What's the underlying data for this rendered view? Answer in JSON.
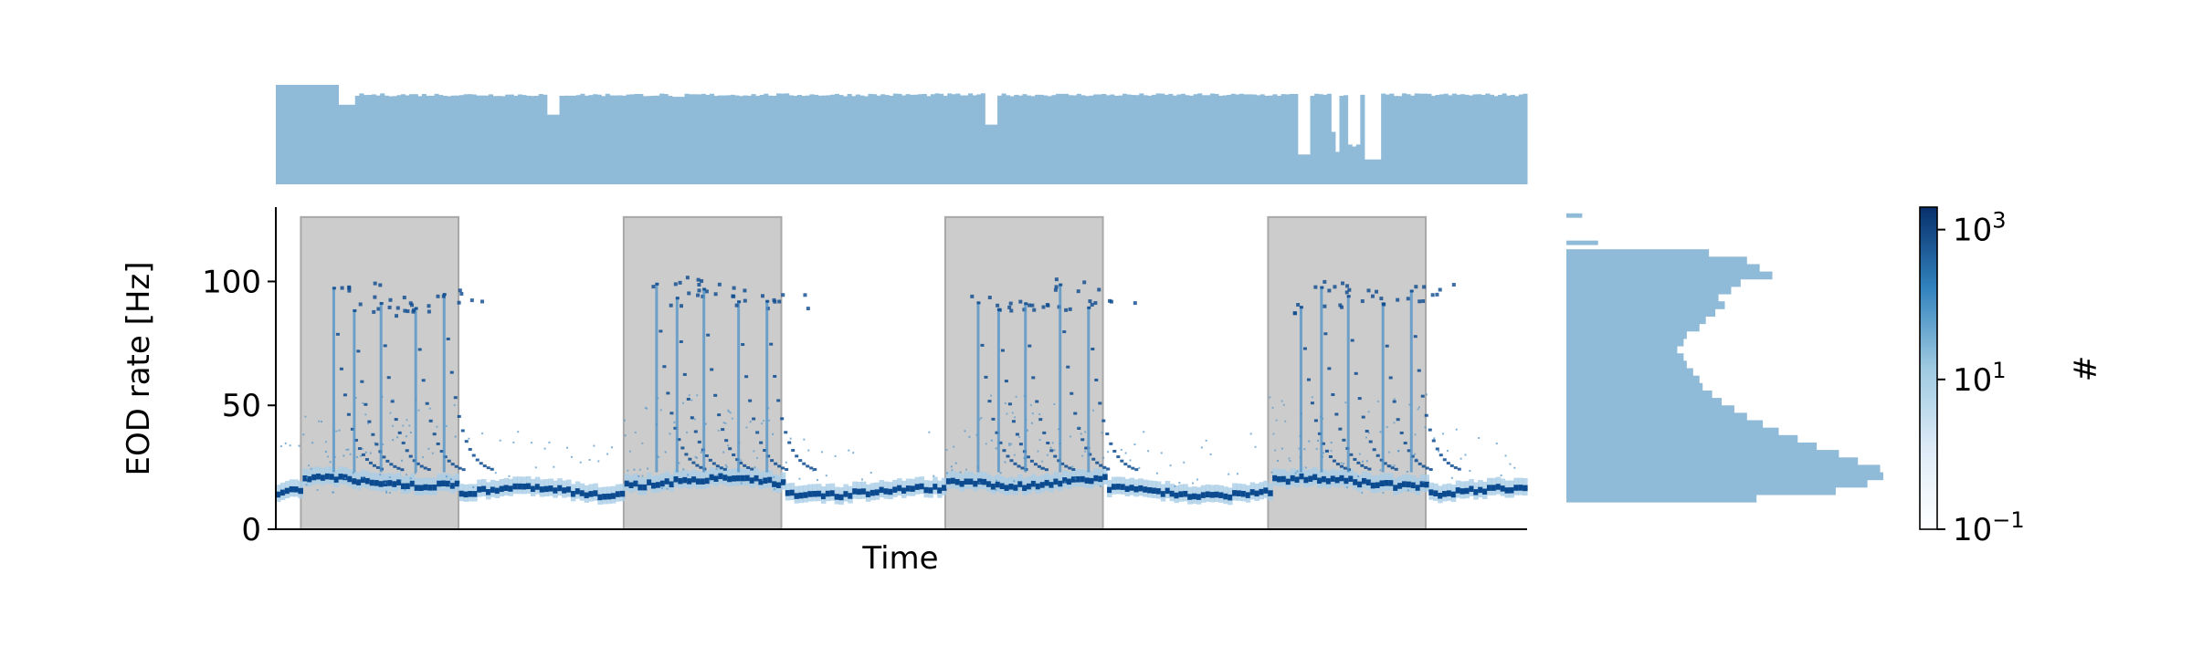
{
  "chart_data": [
    {
      "type": "heatmap",
      "name": "EOD rate over time (2D histogram)",
      "xlabel": "Time",
      "ylabel": "EOD rate [Hz]",
      "ylim": [
        0,
        130
      ],
      "yticks": [
        0,
        50,
        100
      ],
      "xticks": [],
      "grid": false,
      "night_periods": [
        [
          0.02,
          0.146
        ],
        [
          0.278,
          0.404
        ],
        [
          0.535,
          0.661
        ],
        [
          0.793,
          0.919
        ]
      ],
      "baseline_rate_hz": 15,
      "burst_peak_rate_hz": 100,
      "colors": {
        "cmap_low": "#f7fbff",
        "cmap_high": "#08306b",
        "night_shade": "#cccccc"
      }
    },
    {
      "type": "bar",
      "name": "Marginal count over time",
      "xlabel": "",
      "ylabel": "",
      "grid": false,
      "color": "#8fbad8"
    },
    {
      "type": "bar",
      "name": "Marginal count over EOD rate (log scale)",
      "orientation": "horizontal",
      "x_scale": "log",
      "grid": false,
      "color": "#8fbad8",
      "y_bins_hz": [
        110,
        107,
        104,
        101,
        98,
        95,
        92,
        89,
        86,
        83,
        80,
        77,
        74,
        71,
        68,
        65,
        62,
        59,
        56,
        53,
        50,
        47,
        44,
        41,
        38,
        35,
        32,
        29,
        26,
        23,
        20,
        17,
        14,
        11
      ],
      "relative_lengths": [
        0.45,
        0.57,
        0.61,
        0.65,
        0.55,
        0.52,
        0.48,
        0.5,
        0.47,
        0.44,
        0.42,
        0.38,
        0.37,
        0.35,
        0.37,
        0.38,
        0.4,
        0.42,
        0.43,
        0.46,
        0.49,
        0.53,
        0.57,
        0.62,
        0.67,
        0.73,
        0.79,
        0.86,
        0.92,
        0.99,
        1.0,
        0.95,
        0.85,
        0.6
      ],
      "outlier_bins_hz": [
        126,
        115
      ],
      "outlier_lengths": [
        0.05,
        0.1
      ]
    }
  ],
  "colorbar": {
    "label": "#",
    "scale": "log",
    "ticks": [
      {
        "base": "10",
        "exp": "3"
      },
      {
        "base": "10",
        "exp": "1"
      },
      {
        "base": "10",
        "exp": "−1"
      }
    ],
    "range_log10": [
      -1,
      3.3
    ]
  }
}
